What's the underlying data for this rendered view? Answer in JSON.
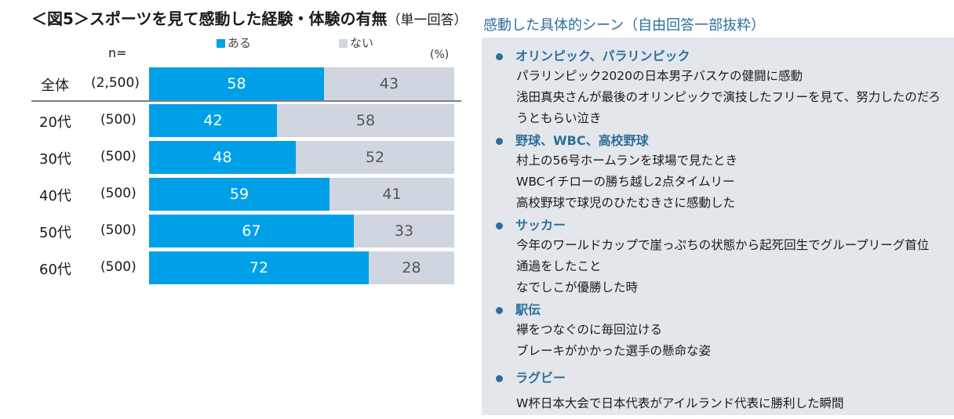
{
  "header": {
    "title": "＜図5＞スポーツを見て感動した経験・体験の有無",
    "subtitle": "（単一回答）"
  },
  "chart_data": {
    "type": "bar",
    "orientation": "horizontal",
    "stacked": true,
    "n_header": "n=",
    "unit_label": "(%)",
    "categories": [
      "全体",
      "20代",
      "30代",
      "40代",
      "50代",
      "60代"
    ],
    "n_values": [
      "(2,500)",
      "(500)",
      "(500)",
      "(500)",
      "(500)",
      "(500)"
    ],
    "series": [
      {
        "name": "ある",
        "color": "#00a0e9",
        "values": [
          58,
          42,
          48,
          59,
          67,
          72
        ]
      },
      {
        "name": "ない",
        "color": "#cfd6df",
        "values": [
          43,
          58,
          52,
          41,
          33,
          28
        ]
      }
    ],
    "legend_position": "top"
  },
  "panel": {
    "title": "感動した具体的シーン（自由回答一部抜粋）",
    "sections": [
      {
        "heading": "オリンピック、パラリンピック",
        "items": [
          "パラリンピック2020の日本男子バスケの健闘に感動",
          "浅田真央さんが最後のオリンピックで演技したフリーを見て、努力したのだろ",
          "うともらい泣き"
        ]
      },
      {
        "heading": "野球、WBC、高校野球",
        "items": [
          "村上の56号ホームランを球場で見たとき",
          "WBCイチローの勝ち越し2点タイムリー",
          "高校野球で球児のひたむきさに感動した"
        ]
      },
      {
        "heading": "サッカー",
        "items": [
          "今年のワールドカップで崖っぷちの状態から起死回生でグループリーグ首位",
          "通過をしたこと",
          "なでしこが優勝した時"
        ]
      },
      {
        "heading": "駅伝",
        "items": [
          "襷をつなぐのに毎回泣ける",
          "ブレーキがかかった選手の懸命な姿"
        ]
      },
      {
        "heading": "ラグビー",
        "items": [
          "W杯日本大会で日本代表がアイルランド代表に勝利した瞬間"
        ]
      }
    ]
  }
}
